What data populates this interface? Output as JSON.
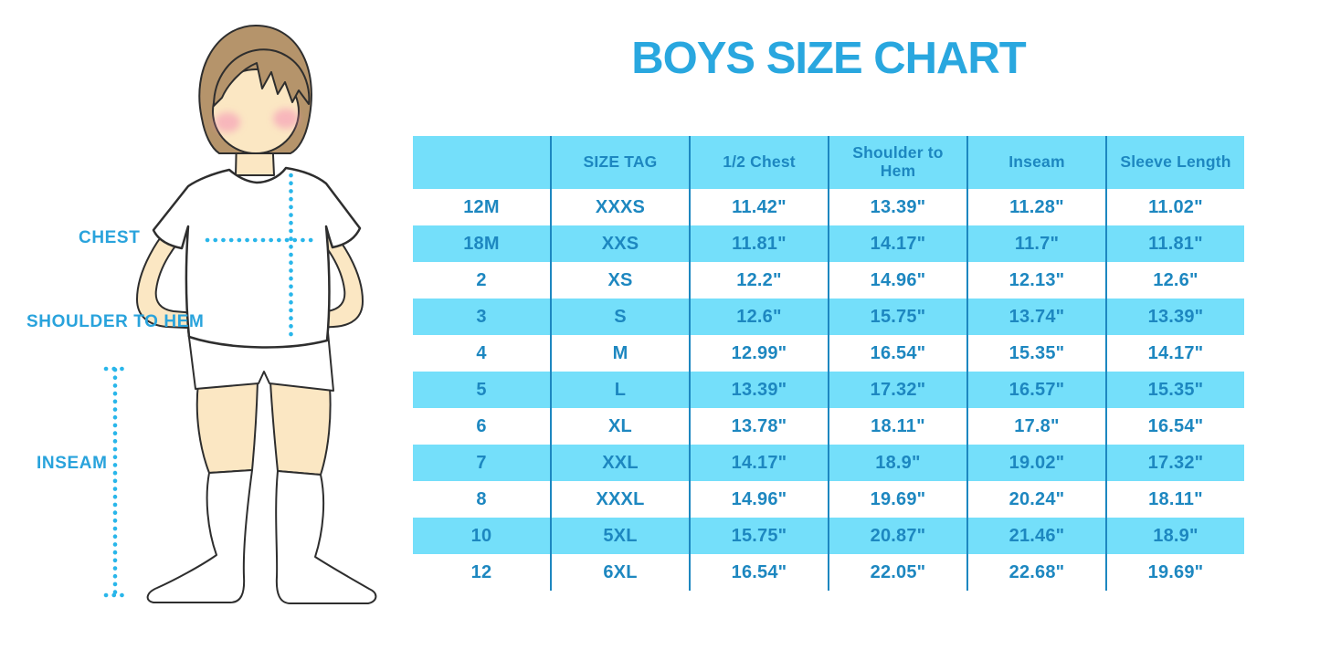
{
  "title": "BOYS SIZE CHART",
  "colors": {
    "accent": "#29A7DF",
    "stripe": "#74DFFA",
    "line": "#1D87C0",
    "cell-text": "#1D87C0",
    "label": "#29A3DC",
    "dotted": "#29B6EA"
  },
  "diagram": {
    "labels": {
      "chest": "CHEST",
      "shoulder_to_hem": "SHOULDER TO HEM",
      "inseam": "INSEAM"
    }
  },
  "chart_data": {
    "type": "table",
    "title": "BOYS SIZE CHART",
    "headers": [
      "",
      "SIZE TAG",
      "1/2 Chest",
      "Shoulder to Hem",
      "Inseam",
      "Sleeve Length"
    ],
    "rows": [
      [
        "12M",
        "XXXS",
        "11.42\"",
        "13.39\"",
        "11.28\"",
        "11.02\""
      ],
      [
        "18M",
        "XXS",
        "11.81\"",
        "14.17\"",
        "11.7\"",
        "11.81\""
      ],
      [
        "2",
        "XS",
        "12.2\"",
        "14.96\"",
        "12.13\"",
        "12.6\""
      ],
      [
        "3",
        "S",
        "12.6\"",
        "15.75\"",
        "13.74\"",
        "13.39\""
      ],
      [
        "4",
        "M",
        "12.99\"",
        "16.54\"",
        "15.35\"",
        "14.17\""
      ],
      [
        "5",
        "L",
        "13.39\"",
        "17.32\"",
        "16.57\"",
        "15.35\""
      ],
      [
        "6",
        "XL",
        "13.78\"",
        "18.11\"",
        "17.8\"",
        "16.54\""
      ],
      [
        "7",
        "XXL",
        "14.17\"",
        "18.9\"",
        "19.02\"",
        "17.32\""
      ],
      [
        "8",
        "XXXL",
        "14.96\"",
        "19.69\"",
        "20.24\"",
        "18.11\""
      ],
      [
        "10",
        "5XL",
        "15.75\"",
        "20.87\"",
        "21.46\"",
        "18.9\""
      ],
      [
        "12",
        "6XL",
        "16.54\"",
        "22.05\"",
        "22.68\"",
        "19.69\""
      ]
    ],
    "layout": {
      "striped_rows": "header and every 2nd data row highlighted",
      "grid": "vertical column separators only"
    }
  }
}
